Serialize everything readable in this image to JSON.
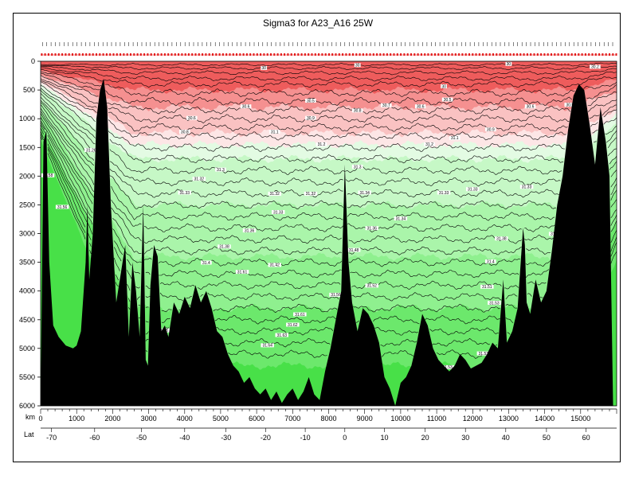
{
  "chart_data": {
    "type": "heatmap",
    "title": "Sigma3 for A23_A16 25W",
    "xlabel": "km",
    "x_secondary_label": "Lat",
    "y_reversed": true,
    "xlim": [
      0,
      16000
    ],
    "ylim": [
      0,
      6000
    ],
    "x_ticks": [
      0,
      1000,
      2000,
      3000,
      4000,
      5000,
      6000,
      7000,
      8000,
      9000,
      10000,
      11000,
      12000,
      13000,
      14000,
      15000
    ],
    "y_ticks": [
      0,
      500,
      1000,
      1500,
      2000,
      2500,
      3000,
      3500,
      4000,
      4500,
      5000,
      5500,
      6000
    ],
    "lat_ticks": [
      {
        "km": 300,
        "label": "-70"
      },
      {
        "km": 1500,
        "label": "-60"
      },
      {
        "km": 2800,
        "label": "-50"
      },
      {
        "km": 4000,
        "label": "-40"
      },
      {
        "km": 5150,
        "label": "-30"
      },
      {
        "km": 6250,
        "label": "-20"
      },
      {
        "km": 7350,
        "label": "-10"
      },
      {
        "km": 8450,
        "label": "0"
      },
      {
        "km": 9550,
        "label": "10"
      },
      {
        "km": 10680,
        "label": "20"
      },
      {
        "km": 11800,
        "label": "30"
      },
      {
        "km": 12920,
        "label": "40"
      },
      {
        "km": 14050,
        "label": "50"
      },
      {
        "km": 15150,
        "label": "60"
      }
    ],
    "colors": {
      "red_dark": "#ee5c5c",
      "red_mid": "#f59090",
      "red_light": "#fac2c2",
      "pink_pale": "#fde6e6",
      "green_pale": "#e3fbe3",
      "green_1": "#c6f8c6",
      "green_2": "#aaf5aa",
      "green_3": "#8ff08f",
      "green_4": "#6ce86c",
      "green_5": "#48e048",
      "bathymetry": "#000000"
    },
    "contour_depths": [
      60,
      120,
      200,
      300,
      400,
      550,
      700,
      850,
      1000,
      1150,
      1300,
      1500,
      1700,
      1900,
      2100,
      2300,
      2500,
      2700,
      2900,
      3100,
      3300,
      3500,
      3700,
      3900,
      4100,
      4300,
      4500,
      4700,
      4900,
      5100
    ],
    "band_boundaries_m": [
      500,
      800,
      1250,
      1450,
      1700,
      2500,
      3400,
      4300
    ],
    "bathymetry": {
      "km": [
        0,
        80,
        160,
        240,
        350,
        500,
        700,
        900,
        1000,
        1120,
        1250,
        1300,
        1350,
        1450,
        1550,
        1650,
        1750,
        1850,
        1950,
        2100,
        2250,
        2350,
        2450,
        2550,
        2650,
        2750,
        2850,
        2920,
        2980,
        3050,
        3150,
        3250,
        3350,
        3450,
        3550,
        3700,
        3850,
        4000,
        4150,
        4300,
        4450,
        4600,
        4750,
        4900,
        5050,
        5200,
        5350,
        5500,
        5650,
        5800,
        5950,
        6100,
        6250,
        6400,
        6550,
        6700,
        6850,
        7000,
        7150,
        7300,
        7450,
        7600,
        7750,
        7900,
        8050,
        8200,
        8350,
        8450,
        8550,
        8650,
        8800,
        8950,
        9100,
        9250,
        9400,
        9550,
        9700,
        9850,
        10000,
        10150,
        10300,
        10450,
        10600,
        10750,
        10900,
        11050,
        11200,
        11350,
        11500,
        11650,
        11800,
        11950,
        12100,
        12250,
        12400,
        12550,
        12700,
        12800,
        12850,
        12950,
        13100,
        13250,
        13400,
        13450,
        13500,
        13600,
        13750,
        13900,
        14050,
        14200,
        14350,
        14500,
        14650,
        14800,
        14950,
        15100,
        15250,
        15400,
        15550,
        15700,
        15800,
        15900
      ],
      "depth": [
        6000,
        1400,
        1200,
        3500,
        4600,
        4800,
        4950,
        5000,
        4950,
        4700,
        3500,
        2500,
        3800,
        3000,
        1000,
        500,
        300,
        800,
        2500,
        4200,
        3600,
        3200,
        4800,
        3500,
        4000,
        4800,
        2500,
        5200,
        5300,
        3900,
        3200,
        3400,
        4700,
        4600,
        4800,
        4200,
        4400,
        4100,
        4300,
        3900,
        4200,
        4000,
        4300,
        4700,
        4800,
        5100,
        5300,
        5400,
        5600,
        5500,
        5700,
        5800,
        5700,
        5900,
        5750,
        5950,
        5800,
        5700,
        5900,
        5750,
        5500,
        5800,
        5900,
        5400,
        5000,
        4500,
        4000,
        1800,
        3500,
        4200,
        4700,
        4300,
        4400,
        4600,
        4900,
        5500,
        5700,
        6000,
        5600,
        5500,
        5300,
        4900,
        4400,
        4600,
        5000,
        5200,
        5300,
        5400,
        5300,
        5100,
        5200,
        5350,
        5300,
        5250,
        5100,
        4900,
        5000,
        4200,
        3800,
        4900,
        4700,
        4300,
        2900,
        3200,
        4200,
        4400,
        3800,
        4200,
        4000,
        3300,
        2500,
        2000,
        1200,
        600,
        400,
        500,
        1100,
        1800,
        800,
        1400,
        2000,
        6000
      ]
    },
    "density_labels": [
      {
        "km": 6200,
        "depth": 130,
        "text": "30"
      },
      {
        "km": 8800,
        "depth": 80,
        "text": "30"
      },
      {
        "km": 11200,
        "depth": 450,
        "text": "30"
      },
      {
        "km": 13000,
        "depth": 60,
        "text": "30"
      },
      {
        "km": 15400,
        "depth": 110,
        "text": "30.2"
      },
      {
        "km": 4200,
        "depth": 1000,
        "text": "30.6"
      },
      {
        "km": 5700,
        "depth": 800,
        "text": "30.6"
      },
      {
        "km": 7500,
        "depth": 700,
        "text": "30.5"
      },
      {
        "km": 8800,
        "depth": 870,
        "text": "30.8"
      },
      {
        "km": 9600,
        "depth": 780,
        "text": "30.7"
      },
      {
        "km": 10550,
        "depth": 800,
        "text": "30.6"
      },
      {
        "km": 11300,
        "depth": 680,
        "text": "30.5"
      },
      {
        "km": 13600,
        "depth": 800,
        "text": "30.6"
      },
      {
        "km": 14700,
        "depth": 770,
        "text": "30.5"
      },
      {
        "km": 4000,
        "depth": 1240,
        "text": "30.8"
      },
      {
        "km": 7500,
        "depth": 1000,
        "text": "30.9"
      },
      {
        "km": 12500,
        "depth": 1200,
        "text": "30.9"
      },
      {
        "km": 6500,
        "depth": 1240,
        "text": "31.1"
      },
      {
        "km": 11500,
        "depth": 1350,
        "text": "31.1"
      },
      {
        "km": 1400,
        "depth": 1560,
        "text": "31.26"
      },
      {
        "km": 7800,
        "depth": 1460,
        "text": "31.2"
      },
      {
        "km": 10800,
        "depth": 1460,
        "text": "31.2"
      },
      {
        "km": 5000,
        "depth": 1900,
        "text": "31.3"
      },
      {
        "km": 8800,
        "depth": 1850,
        "text": "31.3"
      },
      {
        "km": 4400,
        "depth": 2060,
        "text": "31.32"
      },
      {
        "km": 4000,
        "depth": 2300,
        "text": "31.33"
      },
      {
        "km": 6500,
        "depth": 2320,
        "text": "31.32"
      },
      {
        "km": 7500,
        "depth": 2320,
        "text": "31.32"
      },
      {
        "km": 11200,
        "depth": 2300,
        "text": "31.33"
      },
      {
        "km": 12000,
        "depth": 2240,
        "text": "31.33"
      },
      {
        "km": 13500,
        "depth": 2200,
        "text": "31.33"
      },
      {
        "km": 6600,
        "depth": 2640,
        "text": "31.33"
      },
      {
        "km": 9000,
        "depth": 2300,
        "text": "31.34"
      },
      {
        "km": 10000,
        "depth": 2750,
        "text": "31.34"
      },
      {
        "km": 5800,
        "depth": 2960,
        "text": "31.36"
      },
      {
        "km": 9200,
        "depth": 2920,
        "text": "31.36"
      },
      {
        "km": 12800,
        "depth": 3100,
        "text": "31.38"
      },
      {
        "km": 14300,
        "depth": 3020,
        "text": "31.36"
      },
      {
        "km": 5100,
        "depth": 3240,
        "text": "31.38"
      },
      {
        "km": 4600,
        "depth": 3520,
        "text": "31.4"
      },
      {
        "km": 6500,
        "depth": 3560,
        "text": "31.42"
      },
      {
        "km": 12500,
        "depth": 3500,
        "text": "31.4"
      },
      {
        "km": 8700,
        "depth": 3300,
        "text": "31.48"
      },
      {
        "km": 5600,
        "depth": 3680,
        "text": "31.61"
      },
      {
        "km": 9200,
        "depth": 3920,
        "text": "31.52"
      },
      {
        "km": 12400,
        "depth": 3940,
        "text": "31.51"
      },
      {
        "km": 4200,
        "depth": 4340,
        "text": "31.58"
      },
      {
        "km": 8200,
        "depth": 4080,
        "text": "31.56"
      },
      {
        "km": 12600,
        "depth": 4220,
        "text": "31.53"
      },
      {
        "km": 7200,
        "depth": 4420,
        "text": "31.61"
      },
      {
        "km": 7000,
        "depth": 4600,
        "text": "31.62"
      },
      {
        "km": 6700,
        "depth": 4780,
        "text": "31.63"
      },
      {
        "km": 6300,
        "depth": 4960,
        "text": "31.64"
      },
      {
        "km": 12300,
        "depth": 5100,
        "text": "31.53"
      },
      {
        "km": 3400,
        "depth": 4700,
        "text": "31.48"
      },
      {
        "km": 11300,
        "depth": 5340,
        "text": "31.53"
      },
      {
        "km": 600,
        "depth": 2550,
        "text": "31.56"
      },
      {
        "km": 200,
        "depth": 2000,
        "text": "31.58"
      }
    ]
  }
}
